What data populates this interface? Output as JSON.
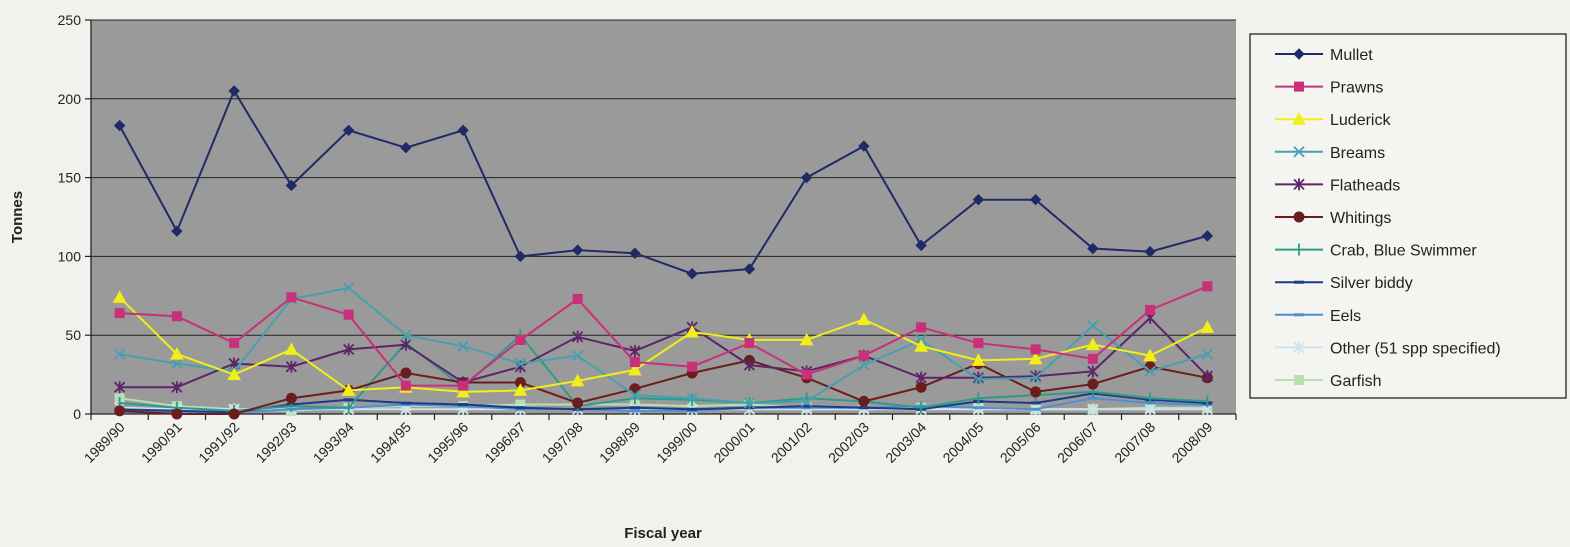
{
  "chart_data": {
    "type": "line",
    "title": "",
    "xlabel": "Fiscal year",
    "ylabel": "Tonnes",
    "ylim": [
      0,
      250
    ],
    "yticks": [
      0,
      50,
      100,
      150,
      200,
      250
    ],
    "grid": "horizontal",
    "legend_position": "right",
    "plot_background": "#9a9a9a",
    "categories": [
      "1989/90",
      "1990/91",
      "1991/92",
      "1992/93",
      "1993/94",
      "1994/95",
      "1995/96",
      "1996/97",
      "1997/98",
      "1998/99",
      "1999/00",
      "2000/01",
      "2001/02",
      "2002/03",
      "2003/04",
      "2004/05",
      "2005/06",
      "2006/07",
      "2007/08",
      "2008/09"
    ],
    "series": [
      {
        "name": "Mullet",
        "color": "#1f2a66",
        "marker": "diamond",
        "values": [
          183,
          116,
          205,
          145,
          180,
          169,
          180,
          100,
          104,
          102,
          89,
          92,
          150,
          170,
          107,
          136,
          136,
          105,
          103,
          113
        ]
      },
      {
        "name": "Prawns",
        "color": "#c8307a",
        "marker": "square",
        "values": [
          64,
          62,
          45,
          74,
          63,
          18,
          18,
          47,
          73,
          33,
          30,
          45,
          25,
          37,
          55,
          45,
          41,
          35,
          66,
          81
        ]
      },
      {
        "name": "Luderick",
        "color": "#f2ee18",
        "marker": "triangle",
        "values": [
          74,
          38,
          25,
          41,
          15,
          17,
          14,
          15,
          21,
          28,
          52,
          47,
          47,
          60,
          43,
          34,
          35,
          44,
          37,
          55
        ]
      },
      {
        "name": "Breams",
        "color": "#46a0b0",
        "marker": "x",
        "values": [
          38,
          32,
          27,
          73,
          80,
          50,
          43,
          32,
          37,
          12,
          10,
          7,
          8,
          31,
          47,
          22,
          23,
          56,
          27,
          38
        ]
      },
      {
        "name": "Flatheads",
        "color": "#5e2468",
        "marker": "star",
        "values": [
          17,
          17,
          32,
          30,
          41,
          44,
          20,
          30,
          49,
          40,
          55,
          31,
          27,
          37,
          23,
          23,
          24,
          27,
          61,
          24
        ]
      },
      {
        "name": "Whitings",
        "color": "#6b1d1d",
        "marker": "circle",
        "values": [
          2,
          0,
          0,
          10,
          15,
          26,
          20,
          20,
          7,
          16,
          26,
          34,
          23,
          8,
          17,
          32,
          14,
          19,
          30,
          23
        ]
      },
      {
        "name": "Crab, Blue Swimmer",
        "color": "#2e9a88",
        "marker": "plus",
        "values": [
          7,
          4,
          2,
          5,
          4,
          45,
          17,
          50,
          5,
          10,
          9,
          7,
          10,
          8,
          4,
          10,
          12,
          14,
          10,
          8
        ]
      },
      {
        "name": "Silver biddy",
        "color": "#1f3a8a",
        "marker": "dash",
        "values": [
          3,
          2,
          1,
          6,
          9,
          7,
          6,
          4,
          3,
          4,
          3,
          4,
          5,
          4,
          3,
          8,
          7,
          13,
          9,
          7
        ]
      },
      {
        "name": "Eels",
        "color": "#4f8fd0",
        "marker": "dash",
        "values": [
          1,
          1,
          1,
          3,
          4,
          6,
          5,
          3,
          3,
          2,
          2,
          4,
          4,
          4,
          5,
          4,
          3,
          10,
          7,
          6
        ]
      },
      {
        "name": "Other (51 spp specified)",
        "color": "#cfe3ee",
        "marker": "star",
        "values": [
          4,
          3,
          3,
          3,
          3,
          3,
          3,
          3,
          3,
          3,
          3,
          3,
          3,
          3,
          3,
          3,
          3,
          3,
          3,
          3
        ]
      },
      {
        "name": "Garfish",
        "color": "#b8e0b0",
        "marker": "square",
        "values": [
          10,
          5,
          3,
          2,
          4,
          5,
          5,
          6,
          6,
          6,
          5,
          6,
          4,
          4,
          4,
          4,
          3,
          3,
          4,
          4
        ]
      }
    ]
  }
}
